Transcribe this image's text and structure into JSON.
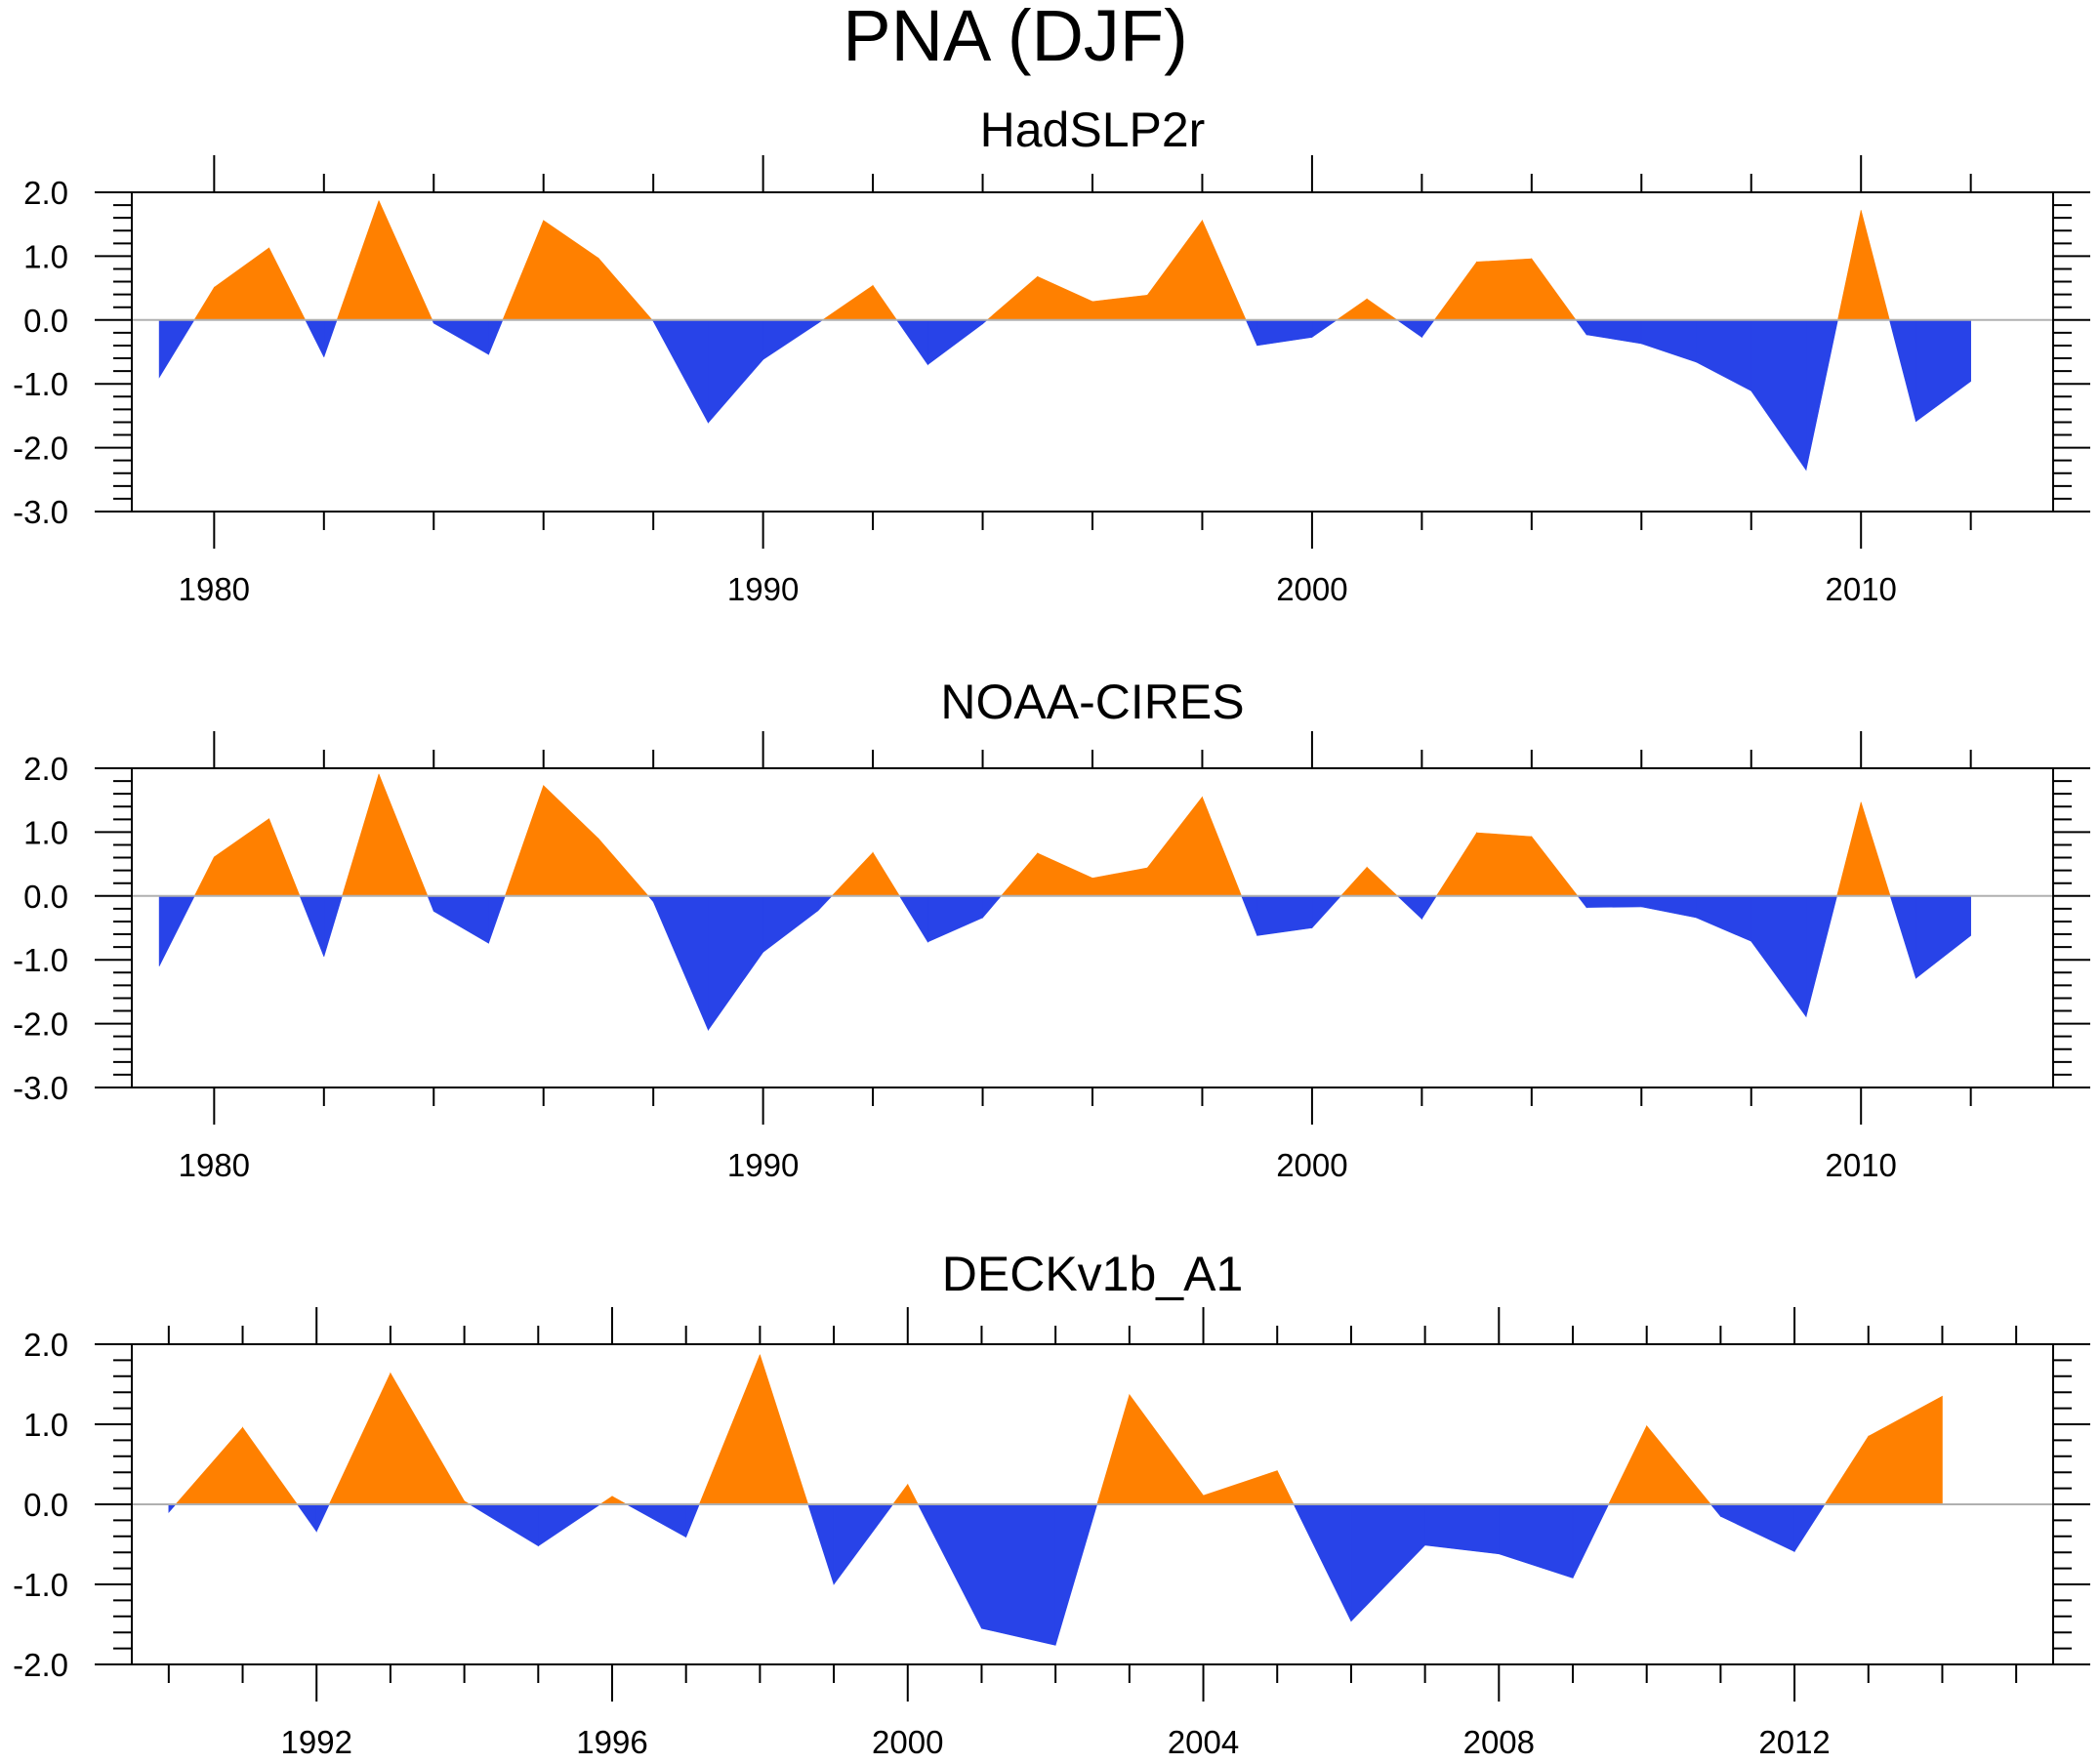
{
  "chart_data": {
    "type": "area",
    "title": "PNA (DJF)",
    "colors": {
      "positive": "#ff8000",
      "negative": "#2843e8",
      "zero_line": "#b0b0b0",
      "frame": "#000000"
    },
    "panels": [
      {
        "title": "HadSLP2r",
        "xlabel": "",
        "ylabel": "",
        "xlim": [
          1978.5,
          2013.5
        ],
        "ylim": [
          -3.0,
          2.0
        ],
        "x_major_ticks": [
          1980,
          1990,
          2000,
          2010
        ],
        "x_minor_step": 2,
        "x_tick_labels": [
          "1980",
          "1990",
          "2000",
          "2010"
        ],
        "y_ticks": [
          2.0,
          1.0,
          0.0,
          -1.0,
          -2.0,
          -3.0
        ],
        "y_tick_labels": [
          "2.0",
          "1.0",
          "0.0",
          "-1.0",
          "-2.0",
          "-3.0"
        ],
        "y_minor_step": 0.2,
        "grid": false,
        "x": [
          1979,
          1980,
          1981,
          1982,
          1983,
          1984,
          1985,
          1986,
          1987,
          1988,
          1989,
          1990,
          1991,
          1992,
          1993,
          1994,
          1995,
          1996,
          1997,
          1998,
          1999,
          2000,
          2001,
          2002,
          2003,
          2004,
          2005,
          2006,
          2007,
          2008,
          2009,
          2010,
          2011,
          2012
        ],
        "values": [
          -0.9,
          0.51,
          1.13,
          -0.58,
          1.87,
          -0.05,
          -0.54,
          1.56,
          0.97,
          -0.02,
          -1.61,
          -0.62,
          -0.05,
          0.54,
          -0.7,
          -0.06,
          0.68,
          0.29,
          0.39,
          1.56,
          -0.4,
          -0.27,
          0.33,
          -0.27,
          0.91,
          0.96,
          -0.23,
          -0.37,
          -0.66,
          -1.11,
          -2.35,
          1.72,
          -1.59,
          -0.96
        ]
      },
      {
        "title": "NOAA-CIRES",
        "xlabel": "",
        "ylabel": "",
        "xlim": [
          1978.5,
          2013.5
        ],
        "ylim": [
          -3.0,
          2.0
        ],
        "x_major_ticks": [
          1980,
          1990,
          2000,
          2010
        ],
        "x_minor_step": 2,
        "x_tick_labels": [
          "1980",
          "1990",
          "2000",
          "2010"
        ],
        "y_ticks": [
          2.0,
          1.0,
          0.0,
          -1.0,
          -2.0,
          -3.0
        ],
        "y_tick_labels": [
          "2.0",
          "1.0",
          "0.0",
          "-1.0",
          "-2.0",
          "-3.0"
        ],
        "y_minor_step": 0.2,
        "grid": false,
        "x": [
          1979,
          1980,
          1981,
          1982,
          1983,
          1984,
          1985,
          1986,
          1987,
          1988,
          1989,
          1990,
          1991,
          1992,
          1993,
          1994,
          1995,
          1996,
          1997,
          1998,
          1999,
          2000,
          2001,
          2002,
          2003,
          2004,
          2005,
          2006,
          2007,
          2008,
          2009,
          2010,
          2011,
          2012
        ],
        "values": [
          -1.1,
          0.61,
          1.21,
          -0.95,
          1.91,
          -0.24,
          -0.74,
          1.73,
          0.9,
          -0.09,
          -2.1,
          -0.88,
          -0.23,
          0.68,
          -0.72,
          -0.34,
          0.67,
          0.28,
          0.44,
          1.55,
          -0.62,
          -0.5,
          0.45,
          -0.36,
          0.99,
          0.93,
          -0.18,
          -0.17,
          -0.34,
          -0.71,
          -1.89,
          1.47,
          -1.29,
          -0.62
        ]
      },
      {
        "title": "DECKv1b_A1",
        "xlabel": "",
        "ylabel": "",
        "xlim": [
          1989.5,
          2015.5
        ],
        "ylim": [
          -2.0,
          2.0
        ],
        "x_major_ticks": [
          1992,
          1996,
          2000,
          2004,
          2008,
          2012
        ],
        "x_minor_step": 1,
        "x_tick_labels": [
          "1992",
          "1996",
          "2000",
          "2004",
          "2008",
          "2012"
        ],
        "y_ticks": [
          2.0,
          1.0,
          0.0,
          -1.0,
          -2.0
        ],
        "y_tick_labels": [
          "2.0",
          "1.0",
          "0.0",
          "-1.0",
          "-2.0"
        ],
        "y_minor_step": 0.2,
        "grid": false,
        "x": [
          1990,
          1991,
          1992,
          1993,
          1994,
          1995,
          1996,
          1997,
          1998,
          1999,
          2000,
          2001,
          2002,
          2003,
          2004,
          2005,
          2006,
          2007,
          2008,
          2009,
          2010,
          2011,
          2012,
          2013,
          2014
        ],
        "values": [
          -0.1,
          0.96,
          -0.34,
          1.64,
          0.04,
          -0.52,
          0.1,
          -0.41,
          1.87,
          -1.0,
          0.25,
          -1.55,
          -1.76,
          1.37,
          0.11,
          0.42,
          -1.46,
          -0.51,
          -0.62,
          -0.92,
          0.98,
          -0.15,
          -0.59,
          0.85,
          1.35
        ]
      }
    ]
  }
}
